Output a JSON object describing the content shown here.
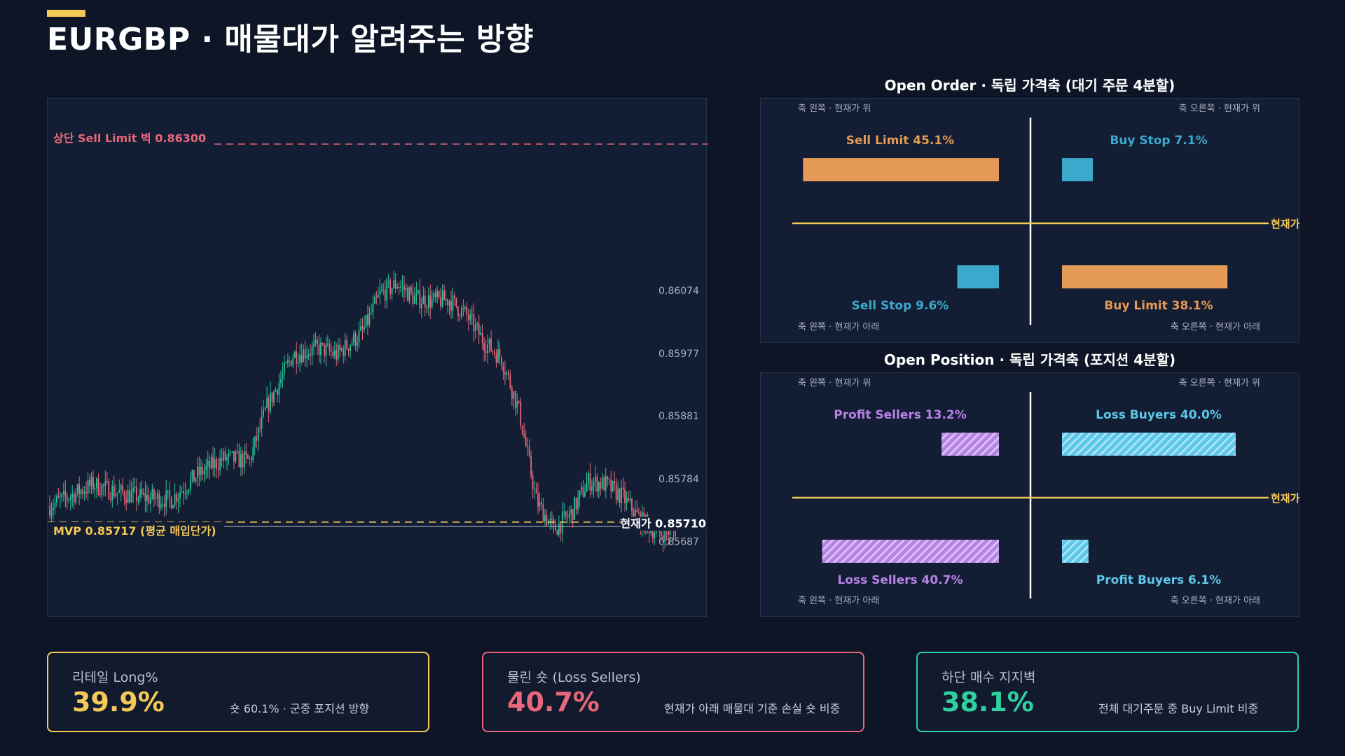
{
  "title": "EURGBP · 매물대가 알려주는 방향",
  "colors": {
    "background": "#0d1526",
    "panel": "#131d33",
    "up": "#26c59a",
    "down": "#e8677a",
    "yellow": "#f5c955",
    "orange": "#e59a55",
    "blue": "#3ba9cc",
    "purple": "#b784e6",
    "light_blue": "#5cc8ea"
  },
  "price_chart": {
    "sell_limit_wall_label": "상단 Sell Limit 벽 0.86300",
    "sell_limit_wall_price": 0.863,
    "mvp_label": "MVP 0.85717 (평균 매입단가)",
    "mvp_price": 0.85717,
    "current_label": "현재가 0.85710",
    "current_price": 0.8571,
    "y_ticks": [
      "0.86074",
      "0.85977",
      "0.85881",
      "0.85784",
      "0.85687"
    ],
    "y_tick_values": [
      0.86074,
      0.85977,
      0.85881,
      0.85784,
      0.85687
    ],
    "ylim": [
      0.8557,
      0.8637
    ]
  },
  "chart_data": [
    {
      "type": "bar",
      "title": "Open Order · 독립 가격축 (대기 주문 4분할)",
      "categories": [
        "Sell Limit",
        "Buy Stop",
        "Sell Stop",
        "Buy Limit"
      ],
      "values": [
        45.1,
        7.1,
        9.6,
        38.1
      ],
      "labels": [
        "Sell Limit 45.1%",
        "Buy Stop 7.1%",
        "Sell Stop 9.6%",
        "Buy Limit 38.1%"
      ],
      "colors": [
        "#e59a55",
        "#3ba9cc",
        "#3ba9cc",
        "#e59a55"
      ],
      "hatched": [
        false,
        false,
        false,
        false
      ],
      "quadrant_labels": [
        "축 왼쪽 · 현재가 위",
        "축 오른쪽 · 현재가 위",
        "축 왼쪽 · 현재가 아래",
        "축 오른쪽 · 현재가 아래"
      ],
      "current_label": "현재가"
    },
    {
      "type": "bar",
      "title": "Open Position · 독립 가격축 (포지션 4분할)",
      "categories": [
        "Profit Sellers",
        "Loss Buyers",
        "Loss Sellers",
        "Profit Buyers"
      ],
      "values": [
        13.2,
        40.0,
        40.7,
        6.1
      ],
      "labels": [
        "Profit Sellers 13.2%",
        "Loss Buyers 40.0%",
        "Loss Sellers 40.7%",
        "Profit Buyers 6.1%"
      ],
      "colors": [
        "#b784e6",
        "#5cc8ea",
        "#b784e6",
        "#5cc8ea"
      ],
      "hatched": [
        true,
        true,
        true,
        true
      ],
      "quadrant_labels": [
        "축 왼쪽 · 현재가 위",
        "축 오른쪽 · 현재가 위",
        "축 왼쪽 · 현재가 아래",
        "축 오른쪽 · 현재가 아래"
      ],
      "current_label": "현재가"
    }
  ],
  "cards": [
    {
      "label": "리테일 Long%",
      "value": "39.9%",
      "note": "숏 60.1% · 군중 포지션 방향",
      "color": "#f5c955"
    },
    {
      "label": "물린 숏 (Loss Sellers)",
      "value": "40.7%",
      "note": "현재가 아래 매물대 기준 손실 숏 비중",
      "color": "#e8677a"
    },
    {
      "label": "하단 매수 지지벽",
      "value": "38.1%",
      "note": "전체 대기주문 중 Buy Limit 비중",
      "color": "#2fd1a0"
    }
  ]
}
